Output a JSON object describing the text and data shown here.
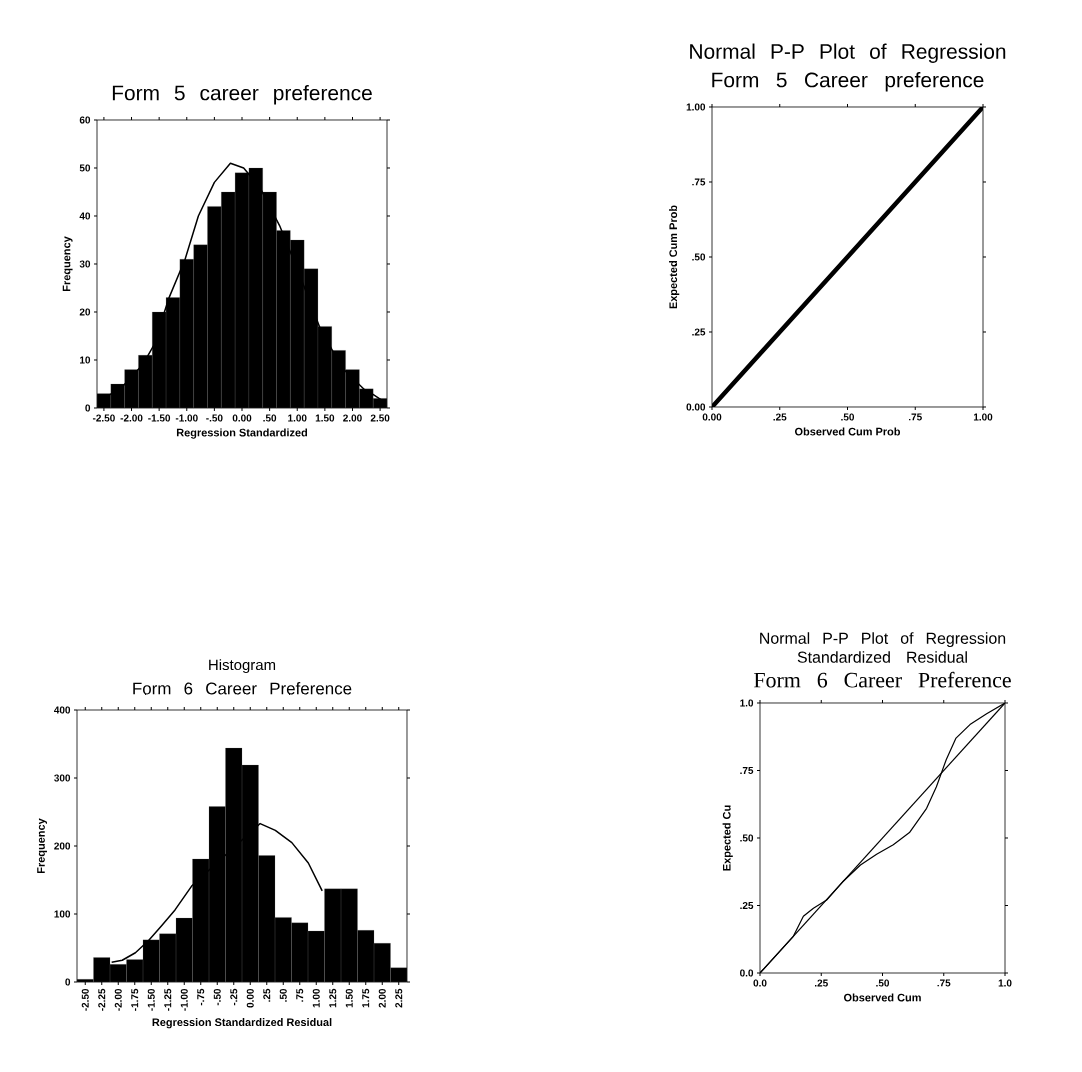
{
  "chart_data": [
    {
      "type": "histogram",
      "title": "Form 5 career preference",
      "xlabel": "Regression Standardized",
      "ylabel": "Frequency",
      "bins": [
        -2.625,
        -2.375,
        -2.125,
        -1.875,
        -1.625,
        -1.375,
        -1.125,
        -0.875,
        -0.625,
        -0.375,
        -0.125,
        0.125,
        0.375,
        0.625,
        0.875,
        1.125,
        1.375,
        1.625,
        1.875,
        2.125,
        2.375,
        2.625
      ],
      "values": [
        3,
        5,
        8,
        11,
        20,
        23,
        31,
        34,
        42,
        45,
        49,
        50,
        45,
        37,
        35,
        29,
        17,
        12,
        8,
        4,
        2
      ],
      "color": "#000000",
      "series": [
        {
          "type": "line",
          "color": "#000000",
          "x": [
            -2.6,
            -2.2,
            -1.8,
            -1.6,
            -1.32,
            -1.03,
            -0.79,
            -0.5,
            -0.21,
            0.03,
            0.32,
            0.68,
            1.0,
            1.4,
            1.8,
            2.2,
            2.35,
            2.55
          ],
          "values": [
            1.5,
            4,
            9,
            13,
            23,
            31,
            40,
            47,
            51,
            50,
            46,
            38,
            29,
            17,
            8.5,
            4,
            3,
            1.5
          ]
        }
      ],
      "xlim": [
        -2.625,
        2.625
      ],
      "ylim": [
        0,
        60
      ],
      "xticks": [
        {
          "value": -2.5,
          "label": "-2.50"
        },
        {
          "value": -2.0,
          "label": "-2.00"
        },
        {
          "value": -1.5,
          "label": "-1.50"
        },
        {
          "value": -1.0,
          "label": "-1.00"
        },
        {
          "value": -0.5,
          "label": "-.50"
        },
        {
          "value": 0,
          "label": "0.00"
        },
        {
          "value": 0.5,
          "label": ".50"
        },
        {
          "value": 1.0,
          "label": "1.00"
        },
        {
          "value": 1.5,
          "label": "1.50"
        },
        {
          "value": 2.0,
          "label": "2.00"
        },
        {
          "value": 2.5,
          "label": "2.50"
        }
      ],
      "yticks": [
        0,
        10,
        20,
        30,
        40,
        50,
        60
      ]
    },
    {
      "type": "line",
      "title": "Normal P-P Plot of Regression",
      "subtitle": "Form 5 Career preference",
      "xlabel": "Observed Cum Prob",
      "ylabel": "Expected Cum Prob",
      "series": [
        {
          "color": "#000000",
          "x": [
            0,
            0.25,
            0.5,
            0.75,
            1
          ],
          "values": [
            0,
            0.25,
            0.5,
            0.75,
            1
          ]
        }
      ],
      "xlim": [
        0,
        1
      ],
      "ylim": [
        0,
        1
      ],
      "xticks": [
        {
          "value": 0,
          "label": "0.00"
        },
        {
          "value": 0.25,
          "label": ".25"
        },
        {
          "value": 0.5,
          "label": ".50"
        },
        {
          "value": 0.75,
          "label": ".75"
        },
        {
          "value": 1,
          "label": "1.00"
        }
      ],
      "yticks": [
        {
          "value": 0,
          "label": "0.00"
        },
        {
          "value": 0.25,
          "label": ".25"
        },
        {
          "value": 0.5,
          "label": ".50"
        },
        {
          "value": 0.75,
          "label": ".75"
        },
        {
          "value": 1,
          "label": "1.00"
        }
      ]
    },
    {
      "type": "histogram",
      "title": "Histogram",
      "subtitle": "Form 6 Career Preference",
      "xlabel": "Regression Standardized Residual",
      "ylabel": "Frequency",
      "bins": [
        -2.625,
        -2.375,
        -2.125,
        -1.875,
        -1.625,
        -1.375,
        -1.125,
        -0.875,
        -0.625,
        -0.375,
        -0.125,
        0.125,
        0.375,
        0.625,
        0.875,
        1.125,
        1.375,
        1.625,
        1.875,
        2.125,
        2.375
      ],
      "values": [
        4,
        36,
        26,
        33,
        62,
        71,
        94,
        181,
        258,
        344,
        319,
        186,
        95,
        87,
        75,
        137,
        137,
        76,
        57,
        21
      ],
      "color": "#000000",
      "series": [
        {
          "type": "line",
          "color": "#000000",
          "x": [
            -2.1,
            -1.94,
            -1.74,
            -1.54,
            -1.34,
            -1.14,
            -0.88,
            0.15,
            0.38,
            0.63,
            0.88,
            1.09
          ],
          "values": [
            29,
            32,
            43,
            61,
            83,
            106,
            142,
            233,
            223,
            205,
            175,
            134
          ]
        }
      ],
      "xlim": [
        -2.625,
        2.375
      ],
      "ylim": [
        0,
        400
      ],
      "xticks": [
        {
          "value": -2.5,
          "label": "-2.50"
        },
        {
          "value": -2.25,
          "label": "-2.25"
        },
        {
          "value": -2.0,
          "label": "-2.00"
        },
        {
          "value": -1.75,
          "label": "-1.75"
        },
        {
          "value": -1.5,
          "label": "-1.50"
        },
        {
          "value": -1.25,
          "label": "-1.25"
        },
        {
          "value": -1.0,
          "label": "-1.00"
        },
        {
          "value": -0.75,
          "label": "-.75"
        },
        {
          "value": -0.5,
          "label": "-.50"
        },
        {
          "value": -0.25,
          "label": "-.25"
        },
        {
          "value": 0,
          "label": "0.00"
        },
        {
          "value": 0.25,
          "label": ".25"
        },
        {
          "value": 0.5,
          "label": ".50"
        },
        {
          "value": 0.75,
          "label": ".75"
        },
        {
          "value": 1.0,
          "label": "1.00"
        },
        {
          "value": 1.25,
          "label": "1.25"
        },
        {
          "value": 1.5,
          "label": "1.50"
        },
        {
          "value": 1.75,
          "label": "1.75"
        },
        {
          "value": 2.0,
          "label": "2.00"
        },
        {
          "value": 2.25,
          "label": "2.25"
        }
      ],
      "yticks": [
        0,
        100,
        200,
        300,
        400
      ]
    },
    {
      "type": "line",
      "title": "Normal P-P Plot of Regression Standardized Residual",
      "subtitle": "Form 6 Career Preference",
      "xlabel": "Observed Cum",
      "ylabel": "Expected Cu",
      "series": [
        {
          "color": "#000000",
          "x": [
            0,
            1
          ],
          "values": [
            0,
            1
          ]
        },
        {
          "color": "#000000",
          "x": [
            0,
            0.136,
            0.177,
            0.218,
            0.272,
            0.34,
            0.41,
            0.476,
            0.544,
            0.61,
            0.68,
            0.72,
            0.76,
            0.8,
            0.857,
            0.925,
            1
          ],
          "values": [
            0,
            0.136,
            0.21,
            0.24,
            0.27,
            0.34,
            0.4,
            0.44,
            0.475,
            0.52,
            0.61,
            0.69,
            0.79,
            0.87,
            0.92,
            0.96,
            1
          ]
        }
      ],
      "xlim": [
        0,
        1
      ],
      "ylim": [
        0,
        1
      ],
      "xticks": [
        {
          "value": 0,
          "label": "0.0"
        },
        {
          "value": 0.25,
          "label": ".25"
        },
        {
          "value": 0.5,
          "label": ".50"
        },
        {
          "value": 0.75,
          "label": ".75"
        },
        {
          "value": 1,
          "label": "1.0"
        }
      ],
      "yticks": [
        {
          "value": 0,
          "label": "0.0"
        },
        {
          "value": 0.25,
          "label": ".25"
        },
        {
          "value": 0.5,
          "label": ".50"
        },
        {
          "value": 0.75,
          "label": ".75"
        },
        {
          "value": 1,
          "label": "1.0"
        }
      ]
    }
  ]
}
